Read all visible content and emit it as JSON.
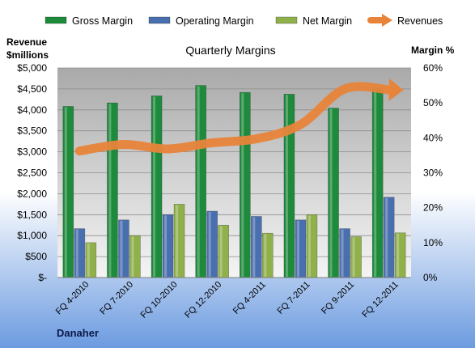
{
  "chart_data": {
    "type": "bar",
    "title": "Quarterly Margins",
    "company": "Danaher",
    "left_axis": {
      "label_line1": "Revenue",
      "label_line2": "$millions",
      "min": 0,
      "max": 5000,
      "step": 500,
      "ticks": [
        "$-",
        "$500",
        "$1,000",
        "$1,500",
        "$2,000",
        "$2,500",
        "$3,000",
        "$3,500",
        "$4,000",
        "$4,500",
        "$5,000"
      ]
    },
    "right_axis": {
      "label": "Margin %",
      "min": 0,
      "max": 60,
      "step": 10,
      "ticks": [
        "0%",
        "10%",
        "20%",
        "30%",
        "40%",
        "50%",
        "60%"
      ]
    },
    "categories": [
      "FQ 4-2010",
      "FQ 7-2010",
      "FQ 10-2010",
      "FQ 12-2010",
      "FQ 4-2011",
      "FQ 7-2011",
      "FQ 9-2011",
      "FQ 12-2011"
    ],
    "series": [
      {
        "name": "Gross Margin",
        "axis": "right",
        "kind": "bar",
        "color": "#1e8a3c",
        "values": [
          49,
          50,
          52,
          55,
          53,
          52.5,
          48.5,
          54
        ]
      },
      {
        "name": "Operating Margin",
        "axis": "right",
        "kind": "bar",
        "color": "#4a6fae",
        "values": [
          14,
          16.5,
          18,
          19,
          17.5,
          16.5,
          14,
          23
        ]
      },
      {
        "name": "Net Margin",
        "axis": "right",
        "kind": "bar",
        "color": "#8fb04a",
        "values": [
          10,
          12,
          21,
          15,
          12.7,
          18,
          11.7,
          12.8
        ]
      },
      {
        "name": "Revenues",
        "axis": "left",
        "kind": "line",
        "color": "#e8843a",
        "values": [
          3020,
          3175,
          3070,
          3215,
          3310,
          3650,
          4500,
          4480
        ]
      }
    ],
    "legend_position": "top"
  }
}
